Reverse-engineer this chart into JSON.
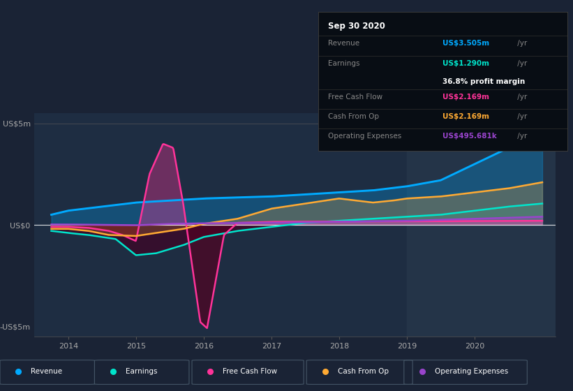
{
  "bg_color": "#1a2335",
  "plot_bg_color": "#1e2d42",
  "highlight_bg": "#243448",
  "title_box_bg": "#0a0f1a",
  "ylim": [
    -5.5,
    5.5
  ],
  "xlim": [
    2013.5,
    2021.2
  ],
  "yticks": [
    -5,
    0,
    5
  ],
  "ytick_labels": [
    "-US$5m",
    "US$0",
    "US$5m"
  ],
  "xticks": [
    2014,
    2015,
    2016,
    2017,
    2018,
    2019,
    2020
  ],
  "zero_line_color": "#ffffff",
  "series": {
    "revenue": {
      "color": "#00aaff",
      "label": "Revenue"
    },
    "earnings": {
      "color": "#00e5cc",
      "label": "Earnings"
    },
    "free_cash_flow": {
      "color": "#ff3399",
      "label": "Free Cash Flow"
    },
    "cash_from_op": {
      "color": "#ffaa33",
      "label": "Cash From Op"
    },
    "operating_expenses": {
      "color": "#9944cc",
      "label": "Operating Expenses"
    }
  },
  "info_box": {
    "date": "Sep 30 2020",
    "revenue_label": "Revenue",
    "revenue_value": "US$3.505m",
    "revenue_suffix": " /yr",
    "revenue_color": "#00aaff",
    "earnings_label": "Earnings",
    "earnings_value": "US$1.290m",
    "earnings_suffix": " /yr",
    "earnings_color": "#00e5cc",
    "margin_text": "36.8% profit margin",
    "fcf_label": "Free Cash Flow",
    "fcf_value": "US$2.169m",
    "fcf_suffix": " /yr",
    "fcf_color": "#ff3399",
    "cashop_label": "Cash From Op",
    "cashop_value": "US$2.169m",
    "cashop_suffix": " /yr",
    "cashop_color": "#ffaa33",
    "opex_label": "Operating Expenses",
    "opex_value": "US$495.681k",
    "opex_suffix": " /yr",
    "opex_color": "#9944cc"
  }
}
